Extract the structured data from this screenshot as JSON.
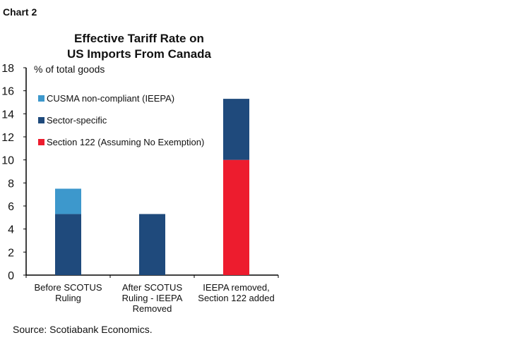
{
  "header": {
    "label": "Chart 2"
  },
  "source": "Source: Scotiabank Economics.",
  "chart_data": {
    "type": "bar",
    "stacked": true,
    "title": "Effective Tariff Rate on US Imports From Canada",
    "title_lines": [
      "Effective Tariff Rate on",
      "US Imports From Canada"
    ],
    "ylabel": "% of total goods",
    "xlabel": "",
    "ylim": [
      0,
      18
    ],
    "yticks": [
      0,
      2,
      4,
      6,
      8,
      10,
      12,
      14,
      16,
      18
    ],
    "grid": false,
    "legend_position": "top-left",
    "categories": [
      [
        "Before SCOTUS",
        "Ruling"
      ],
      [
        "After SCOTUS",
        "Ruling - IEEPA",
        "Removed"
      ],
      [
        "IEEPA removed,",
        "Section 122 added"
      ]
    ],
    "series": [
      {
        "name": "Section 122 (Assuming No Exemption)",
        "color": "#ed1c2e",
        "values": [
          0,
          0,
          10.0
        ]
      },
      {
        "name": "Sector-specific",
        "color": "#1f4a7c",
        "values": [
          5.3,
          5.3,
          5.3
        ]
      },
      {
        "name": "CUSMA non-compliant (IEEPA)",
        "color": "#3d98cc",
        "values": [
          2.2,
          0,
          0
        ]
      }
    ],
    "legend_order": [
      2,
      1,
      0
    ]
  }
}
